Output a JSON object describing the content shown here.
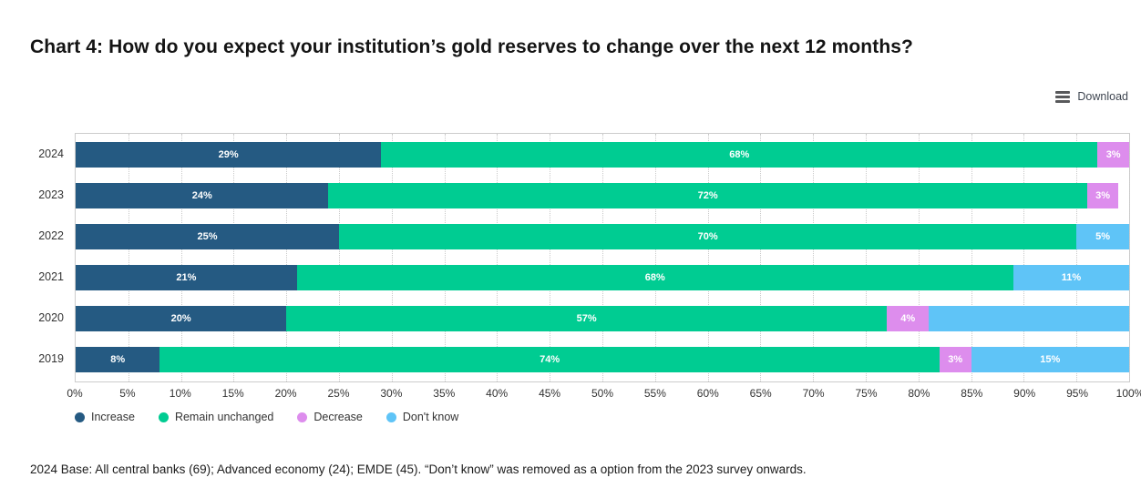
{
  "title": "Chart 4: How do you expect your institution’s gold reserves to change over the next 12 months?",
  "download_label": "Download",
  "footnote": "2024 Base: All central banks (69); Advanced economy (24); EMDE (45). “Don’t know” was removed as a option from the 2023 survey onwards.",
  "chart_data": {
    "type": "bar",
    "orientation": "horizontal",
    "stacked": true,
    "unit": "%",
    "categories": [
      "2024",
      "2023",
      "2022",
      "2021",
      "2020",
      "2019"
    ],
    "series": [
      {
        "name": "Increase",
        "color": "#255a82",
        "values": [
          29,
          24,
          25,
          21,
          20,
          8
        ],
        "labels": [
          "29%",
          "24%",
          "25%",
          "21%",
          "20%",
          "8%"
        ]
      },
      {
        "name": "Remain unchanged",
        "color": "#00cc92",
        "values": [
          68,
          72,
          70,
          68,
          57,
          74
        ],
        "labels": [
          "68%",
          "72%",
          "70%",
          "68%",
          "57%",
          "74%"
        ]
      },
      {
        "name": "Decrease",
        "color": "#dd8ded",
        "values": [
          3,
          3,
          0,
          0,
          4,
          3
        ],
        "labels": [
          "3%",
          "3%",
          "",
          "",
          "4%",
          "3%"
        ]
      },
      {
        "name": "Don't know",
        "color": "#5fc4f7",
        "values": [
          0,
          0,
          5,
          11,
          19,
          15
        ],
        "labels": [
          "",
          "",
          "5%",
          "11%",
          "",
          "15%"
        ]
      }
    ],
    "xlim": [
      0,
      100
    ],
    "x_tick_step": 5,
    "x_ticks": [
      "0%",
      "5%",
      "10%",
      "15%",
      "20%",
      "25%",
      "30%",
      "35%",
      "40%",
      "45%",
      "50%",
      "55%",
      "60%",
      "65%",
      "70%",
      "75%",
      "80%",
      "85%",
      "90%",
      "95%",
      "100%"
    ],
    "grid": "vertical-dotted",
    "legend_position": "bottom-left"
  }
}
